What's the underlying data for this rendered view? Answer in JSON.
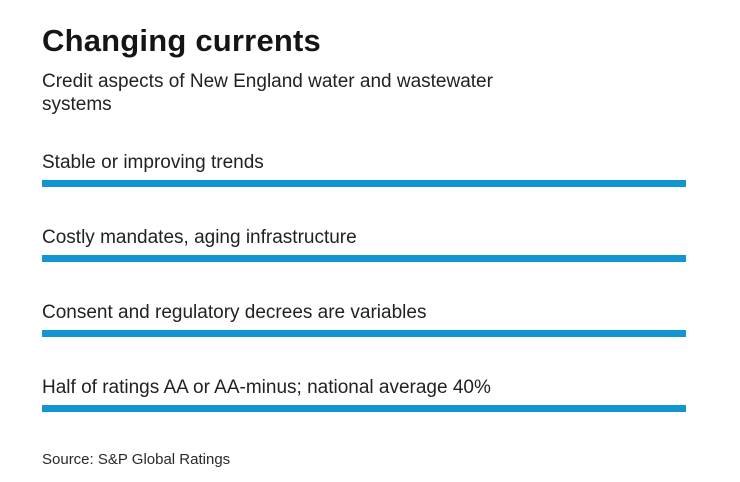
{
  "accent_color": "#1196d2",
  "header": {
    "title": "Changing currents",
    "subtitle": "Credit aspects of New England water and wastewater systems",
    "subtitle_lines": [
      "Credit aspects of New England water and wastewater",
      "systems"
    ]
  },
  "items": [
    {
      "label": "Stable or improving trends"
    },
    {
      "label": "Costly mandates, aging infrastructure"
    },
    {
      "label": "Consent and regulatory decrees are variables"
    },
    {
      "label": "Half of ratings AA or AA-minus; national average 40%"
    }
  ],
  "footer": {
    "source": "Source: S&P Global Ratings"
  },
  "chart_data": {
    "type": "table",
    "title": "Changing currents",
    "subtitle": "Credit aspects of New England water and wastewater systems",
    "rows": [
      "Stable or improving trends",
      "Costly mandates, aging infrastructure",
      "Consent and regulatory decrees are variables",
      "Half of ratings AA or AA-minus; national average 40%"
    ],
    "source": "Source: S&P Global Ratings"
  }
}
